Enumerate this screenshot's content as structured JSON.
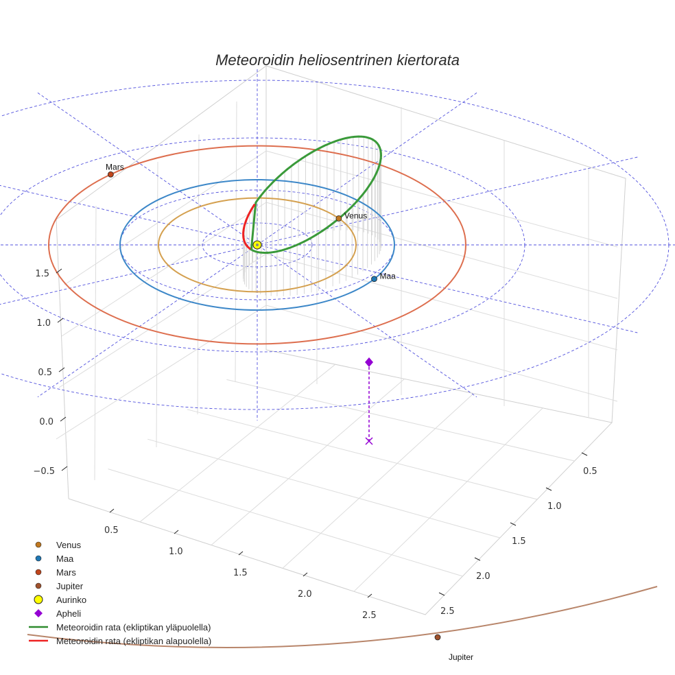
{
  "chart_data": {
    "type": "line",
    "projection": "3d",
    "title": "Meteoroidin heliosentrinen kiertorata",
    "axes": {
      "x_ticks": [
        "0.5",
        "1.0",
        "1.5",
        "2.0",
        "2.5"
      ],
      "y_ticks": [
        "0.5",
        "1.0",
        "1.5",
        "2.0",
        "2.5"
      ],
      "z_ticks": [
        "−0.5",
        "0.0",
        "0.5",
        "1.0",
        "1.5"
      ],
      "xlim": [
        0.0,
        2.8
      ],
      "ylim": [
        0.0,
        2.8
      ],
      "zlim": [
        -0.7,
        1.8
      ]
    },
    "grid": true,
    "colors": {
      "venus": "#d4a04f",
      "earth": "#3c87c8",
      "mars": "#dd6e4e",
      "jupiter": "#b8856a",
      "sun": "#ffff00",
      "apheli": "#9400d3",
      "orbit_above": "#3a9a3a",
      "orbit_below": "#ee2222",
      "reference_grid": "#5050dd"
    },
    "planets": [
      {
        "name": "Venus",
        "orbit_radius_au": 0.72,
        "label": "Venus"
      },
      {
        "name": "Maa",
        "orbit_radius_au": 1.0,
        "label": "Maa"
      },
      {
        "name": "Mars",
        "orbit_radius_au": 1.52,
        "label": "Mars"
      },
      {
        "name": "Jupiter",
        "orbit_radius_au": 5.2,
        "label": "Jupiter"
      }
    ],
    "sun": {
      "name": "Aurinko",
      "x": 0,
      "y": 0,
      "z": 0
    },
    "meteoroid_orbit": {
      "perihelion_au": 0.12,
      "aphelion_au": 2.7,
      "inclination_deg": 4
    },
    "apheli": {
      "name": "Apheli",
      "distance_au": 2.7
    },
    "legend": {
      "position": "bottom-left",
      "entries": [
        {
          "label": "Venus",
          "symbol": "dot",
          "color": "#c07820"
        },
        {
          "label": "Maa",
          "symbol": "dot",
          "color": "#1f77b4"
        },
        {
          "label": "Mars",
          "symbol": "dot",
          "color": "#c0461c"
        },
        {
          "label": "Jupiter",
          "symbol": "dot",
          "color": "#a0522d"
        },
        {
          "label": "Aurinko",
          "symbol": "sun",
          "color": "#ffff00"
        },
        {
          "label": "Apheli",
          "symbol": "diamond",
          "color": "#9400d3"
        },
        {
          "label": "Meteoroidin rata (ekliptikan yläpuolella)",
          "symbol": "line",
          "color": "#2e8b2e"
        },
        {
          "label": "Meteoroidin rata (ekliptikan alapuolella)",
          "symbol": "line",
          "color": "#ee2222"
        }
      ]
    }
  }
}
